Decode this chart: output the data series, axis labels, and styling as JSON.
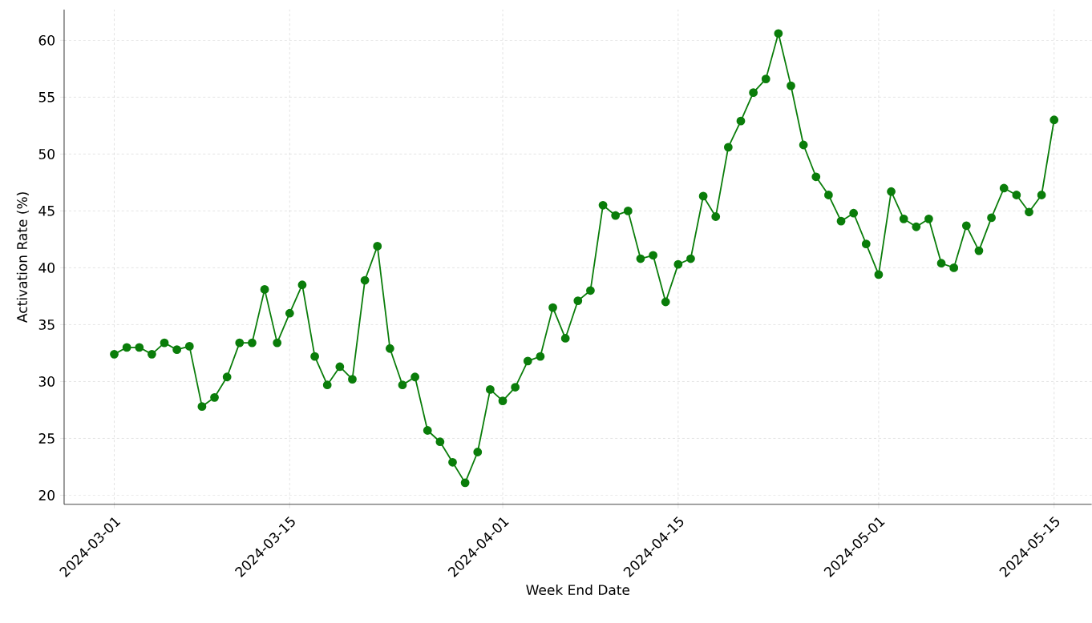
{
  "chart_data": {
    "type": "line",
    "xlabel": "Week End Date",
    "ylabel": "Activation Rate (%)",
    "x": [
      "2024-03-01",
      "2024-03-02",
      "2024-03-03",
      "2024-03-04",
      "2024-03-05",
      "2024-03-06",
      "2024-03-07",
      "2024-03-08",
      "2024-03-09",
      "2024-03-10",
      "2024-03-11",
      "2024-03-12",
      "2024-03-13",
      "2024-03-14",
      "2024-03-15",
      "2024-03-16",
      "2024-03-17",
      "2024-03-18",
      "2024-03-19",
      "2024-03-20",
      "2024-03-21",
      "2024-03-22",
      "2024-03-23",
      "2024-03-24",
      "2024-03-25",
      "2024-03-26",
      "2024-03-27",
      "2024-03-28",
      "2024-03-29",
      "2024-03-30",
      "2024-03-31",
      "2024-04-01",
      "2024-04-02",
      "2024-04-03",
      "2024-04-04",
      "2024-04-05",
      "2024-04-06",
      "2024-04-07",
      "2024-04-08",
      "2024-04-09",
      "2024-04-10",
      "2024-04-11",
      "2024-04-12",
      "2024-04-13",
      "2024-04-14",
      "2024-04-15",
      "2024-04-16",
      "2024-04-17",
      "2024-04-18",
      "2024-04-19",
      "2024-04-20",
      "2024-04-21",
      "2024-04-22",
      "2024-04-23",
      "2024-04-24",
      "2024-04-25",
      "2024-04-26",
      "2024-04-27",
      "2024-04-28",
      "2024-04-29",
      "2024-04-30",
      "2024-05-01",
      "2024-05-02",
      "2024-05-03",
      "2024-05-04",
      "2024-05-05",
      "2024-05-06",
      "2024-05-07",
      "2024-05-08",
      "2024-05-09",
      "2024-05-10",
      "2024-05-11",
      "2024-05-12",
      "2024-05-13",
      "2024-05-14",
      "2024-05-15"
    ],
    "values": [
      32.4,
      33.0,
      33.0,
      32.4,
      33.4,
      32.8,
      33.1,
      27.8,
      28.6,
      30.4,
      33.4,
      33.4,
      38.1,
      33.4,
      36.0,
      38.5,
      32.2,
      29.7,
      31.3,
      30.2,
      38.9,
      41.9,
      32.9,
      29.7,
      30.4,
      25.7,
      24.7,
      22.9,
      21.1,
      23.8,
      29.3,
      28.3,
      29.5,
      31.8,
      32.2,
      36.5,
      33.8,
      37.1,
      38.0,
      45.5,
      44.6,
      45.0,
      40.8,
      41.1,
      37.0,
      40.3,
      40.8,
      46.3,
      44.5,
      50.6,
      52.9,
      55.4,
      56.6,
      60.6,
      56.0,
      50.8,
      48.0,
      46.4,
      44.1,
      44.8,
      42.1,
      39.4,
      46.7,
      44.3,
      43.6,
      44.3,
      40.4,
      40.0,
      43.7,
      41.5,
      44.4,
      47.0,
      46.4,
      44.9,
      46.4,
      53.0
    ],
    "color": "#0a7d0a",
    "marker": "circle",
    "line_style": "solid",
    "grid": true,
    "xlim": [
      "2024-02-26",
      "2024-05-18"
    ],
    "ylim": [
      19.2,
      62.7
    ],
    "xticks": [
      "2024-03-01",
      "2024-03-15",
      "2024-04-01",
      "2024-04-15",
      "2024-05-01",
      "2024-05-15"
    ],
    "yticks": [
      20,
      25,
      30,
      35,
      40,
      45,
      50,
      55,
      60
    ]
  }
}
